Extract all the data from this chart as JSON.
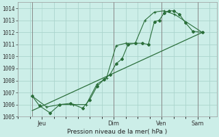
{
  "background_color": "#cceee8",
  "grid_color": "#aad4cc",
  "line_color": "#2a6e3a",
  "marker_color": "#2a6e3a",
  "xlabel": "Pression niveau de la mer( hPa )",
  "ylim": [
    1005,
    1014.5
  ],
  "yticks": [
    1005,
    1006,
    1007,
    1008,
    1009,
    1010,
    1011,
    1012,
    1013,
    1014
  ],
  "xtick_labels": [
    "Jeu",
    "Dim",
    "Ven",
    "Sam"
  ],
  "xtick_positions": [
    1,
    4,
    6,
    7.5
  ],
  "xlim": [
    0,
    8.3
  ],
  "vline_positions": [
    0.6,
    4.0,
    6.0,
    7.5
  ],
  "series1_x": [
    0.6,
    0.9,
    1.35,
    1.75,
    2.2,
    2.7,
    3.0,
    3.3,
    3.6,
    3.85,
    4.1,
    4.35,
    4.6,
    4.9,
    5.2,
    5.45,
    5.7,
    5.9,
    6.1,
    6.3,
    6.5,
    6.75,
    7.0,
    7.3,
    7.7
  ],
  "series1_y": [
    1006.7,
    1005.9,
    1005.3,
    1006.0,
    1006.1,
    1005.7,
    1006.4,
    1007.5,
    1008.1,
    1008.5,
    1009.4,
    1009.8,
    1011.0,
    1011.1,
    1011.1,
    1011.0,
    1012.9,
    1013.0,
    1013.6,
    1013.8,
    1013.8,
    1013.5,
    1012.8,
    1012.1,
    1012.0
  ],
  "series2_x": [
    0.6,
    1.2,
    1.75,
    2.3,
    2.85,
    3.3,
    3.7,
    4.1,
    4.5,
    4.9,
    5.3,
    5.7,
    6.1,
    6.55,
    7.7
  ],
  "series2_y": [
    1006.7,
    1005.8,
    1006.0,
    1006.0,
    1006.0,
    1007.7,
    1008.2,
    1010.9,
    1011.1,
    1011.1,
    1013.0,
    1013.7,
    1013.8,
    1013.5,
    1012.0
  ],
  "series3_x": [
    0.6,
    7.7
  ],
  "series3_y": [
    1005.5,
    1012.0
  ]
}
